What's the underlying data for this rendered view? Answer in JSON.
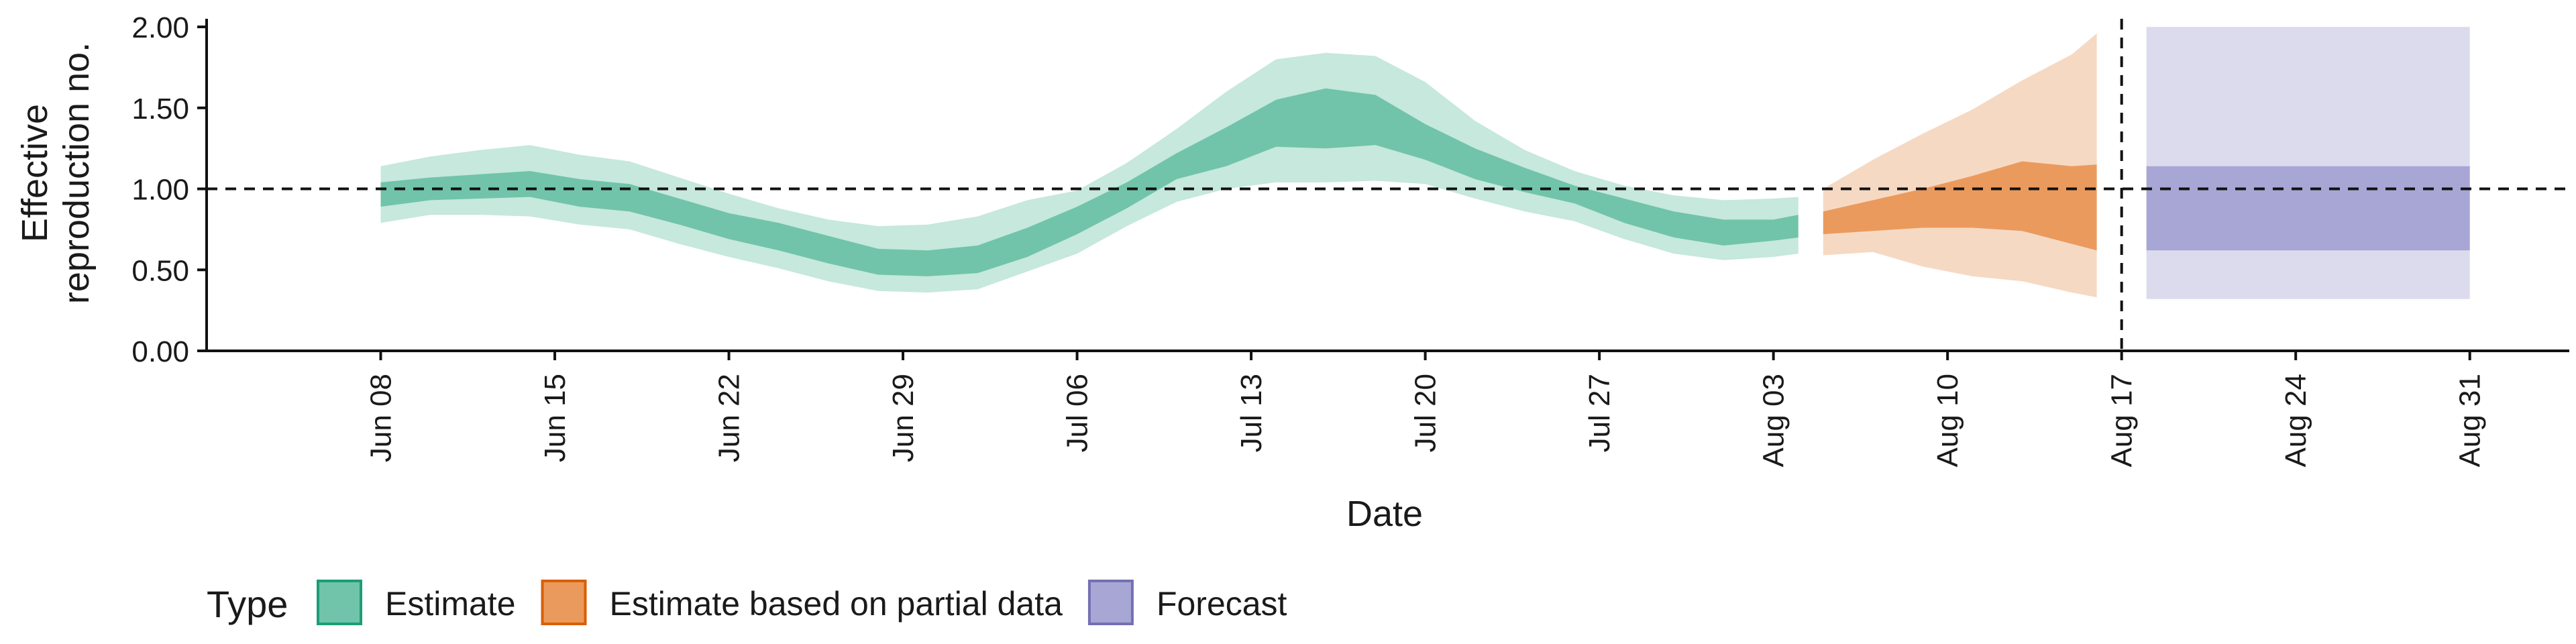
{
  "chart_data": {
    "type": "area",
    "ylabel_lines": [
      "Effective",
      "reproduction no."
    ],
    "xlabel": "Date",
    "ylim": [
      0,
      2.05
    ],
    "xlim": [
      "2020-06-01",
      "2020-09-04"
    ],
    "y_ticks": [
      "0.00",
      "0.50",
      "1.00",
      "1.50",
      "2.00"
    ],
    "x_ticks": [
      {
        "date": "2020-06-08",
        "label": "Jun 08"
      },
      {
        "date": "2020-06-15",
        "label": "Jun 15"
      },
      {
        "date": "2020-06-22",
        "label": "Jun 22"
      },
      {
        "date": "2020-06-29",
        "label": "Jun 29"
      },
      {
        "date": "2020-07-06",
        "label": "Jul 06"
      },
      {
        "date": "2020-07-13",
        "label": "Jul 13"
      },
      {
        "date": "2020-07-20",
        "label": "Jul 20"
      },
      {
        "date": "2020-07-27",
        "label": "Jul 27"
      },
      {
        "date": "2020-08-03",
        "label": "Aug 03"
      },
      {
        "date": "2020-08-10",
        "label": "Aug 10"
      },
      {
        "date": "2020-08-17",
        "label": "Aug 17"
      },
      {
        "date": "2020-08-24",
        "label": "Aug 24"
      },
      {
        "date": "2020-08-31",
        "label": "Aug 31"
      }
    ],
    "reference_hline": 1.0,
    "reference_vline": "2020-08-17",
    "grid": false,
    "legend": {
      "title": "Type",
      "position": "bottom-left",
      "entries": [
        {
          "name": "Estimate",
          "fill": "#71c4a9",
          "stroke": "#1b9e77"
        },
        {
          "name": "Estimate based on partial data",
          "fill": "#eb9a5d",
          "stroke": "#d95f02"
        },
        {
          "name": "Forecast",
          "fill": "#a8a6d4",
          "stroke": "#7570b3"
        }
      ]
    },
    "series": [
      {
        "name": "Estimate",
        "outer_fill": "#c6e8dd",
        "inner_fill": "#71c4a9",
        "points": [
          {
            "x": "2020-06-08",
            "lo90": 0.79,
            "lo50": 0.89,
            "hi50": 1.04,
            "hi90": 1.14
          },
          {
            "x": "2020-06-10",
            "lo90": 0.84,
            "lo50": 0.93,
            "hi50": 1.07,
            "hi90": 1.2
          },
          {
            "x": "2020-06-12",
            "lo90": 0.84,
            "lo50": 0.94,
            "hi50": 1.09,
            "hi90": 1.24
          },
          {
            "x": "2020-06-14",
            "lo90": 0.83,
            "lo50": 0.95,
            "hi50": 1.11,
            "hi90": 1.27
          },
          {
            "x": "2020-06-16",
            "lo90": 0.78,
            "lo50": 0.89,
            "hi50": 1.06,
            "hi90": 1.21
          },
          {
            "x": "2020-06-18",
            "lo90": 0.75,
            "lo50": 0.86,
            "hi50": 1.03,
            "hi90": 1.17
          },
          {
            "x": "2020-06-20",
            "lo90": 0.66,
            "lo50": 0.78,
            "hi50": 0.94,
            "hi90": 1.07
          },
          {
            "x": "2020-06-22",
            "lo90": 0.58,
            "lo50": 0.69,
            "hi50": 0.85,
            "hi90": 0.97
          },
          {
            "x": "2020-06-24",
            "lo90": 0.51,
            "lo50": 0.62,
            "hi50": 0.79,
            "hi90": 0.88
          },
          {
            "x": "2020-06-26",
            "lo90": 0.43,
            "lo50": 0.54,
            "hi50": 0.71,
            "hi90": 0.81
          },
          {
            "x": "2020-06-28",
            "lo90": 0.37,
            "lo50": 0.47,
            "hi50": 0.63,
            "hi90": 0.77
          },
          {
            "x": "2020-06-30",
            "lo90": 0.36,
            "lo50": 0.46,
            "hi50": 0.62,
            "hi90": 0.78
          },
          {
            "x": "2020-07-02",
            "lo90": 0.38,
            "lo50": 0.48,
            "hi50": 0.65,
            "hi90": 0.83
          },
          {
            "x": "2020-07-04",
            "lo90": 0.49,
            "lo50": 0.58,
            "hi50": 0.76,
            "hi90": 0.93
          },
          {
            "x": "2020-07-06",
            "lo90": 0.6,
            "lo50": 0.72,
            "hi50": 0.89,
            "hi90": 0.99
          },
          {
            "x": "2020-07-08",
            "lo90": 0.77,
            "lo50": 0.88,
            "hi50": 1.04,
            "hi90": 1.16
          },
          {
            "x": "2020-07-10",
            "lo90": 0.92,
            "lo50": 1.06,
            "hi50": 1.22,
            "hi90": 1.37
          },
          {
            "x": "2020-07-12",
            "lo90": 1.0,
            "lo50": 1.14,
            "hi50": 1.38,
            "hi90": 1.6
          },
          {
            "x": "2020-07-14",
            "lo90": 1.04,
            "lo50": 1.26,
            "hi50": 1.55,
            "hi90": 1.8
          },
          {
            "x": "2020-07-16",
            "lo90": 1.04,
            "lo50": 1.25,
            "hi50": 1.62,
            "hi90": 1.84
          },
          {
            "x": "2020-07-18",
            "lo90": 1.05,
            "lo50": 1.27,
            "hi50": 1.58,
            "hi90": 1.82
          },
          {
            "x": "2020-07-20",
            "lo90": 1.03,
            "lo50": 1.18,
            "hi50": 1.4,
            "hi90": 1.66
          },
          {
            "x": "2020-07-22",
            "lo90": 0.94,
            "lo50": 1.06,
            "hi50": 1.25,
            "hi90": 1.42
          },
          {
            "x": "2020-07-24",
            "lo90": 0.86,
            "lo50": 0.98,
            "hi50": 1.13,
            "hi90": 1.24
          },
          {
            "x": "2020-07-26",
            "lo90": 0.8,
            "lo50": 0.91,
            "hi50": 1.02,
            "hi90": 1.11
          },
          {
            "x": "2020-07-28",
            "lo90": 0.69,
            "lo50": 0.79,
            "hi50": 0.94,
            "hi90": 1.02
          },
          {
            "x": "2020-07-30",
            "lo90": 0.6,
            "lo50": 0.7,
            "hi50": 0.86,
            "hi90": 0.96
          },
          {
            "x": "2020-08-01",
            "lo90": 0.56,
            "lo50": 0.65,
            "hi50": 0.81,
            "hi90": 0.93
          },
          {
            "x": "2020-08-03",
            "lo90": 0.58,
            "lo50": 0.68,
            "hi50": 0.81,
            "hi90": 0.94
          },
          {
            "x": "2020-08-04",
            "lo90": 0.6,
            "lo50": 0.7,
            "hi50": 0.84,
            "hi90": 0.95
          }
        ]
      },
      {
        "name": "Estimate based on partial data",
        "outer_fill": "#f6d9c3",
        "inner_fill": "#eb9a5d",
        "points": [
          {
            "x": "2020-08-05",
            "lo90": 0.59,
            "lo50": 0.72,
            "hi50": 0.86,
            "hi90": 1.0
          },
          {
            "x": "2020-08-07",
            "lo90": 0.61,
            "lo50": 0.74,
            "hi50": 0.93,
            "hi90": 1.18
          },
          {
            "x": "2020-08-09",
            "lo90": 0.52,
            "lo50": 0.76,
            "hi50": 1.0,
            "hi90": 1.34
          },
          {
            "x": "2020-08-11",
            "lo90": 0.46,
            "lo50": 0.76,
            "hi50": 1.08,
            "hi90": 1.49
          },
          {
            "x": "2020-08-13",
            "lo90": 0.43,
            "lo50": 0.74,
            "hi50": 1.17,
            "hi90": 1.67
          },
          {
            "x": "2020-08-15",
            "lo90": 0.36,
            "lo50": 0.66,
            "hi50": 1.14,
            "hi90": 1.83
          },
          {
            "x": "2020-08-16",
            "lo90": 0.33,
            "lo50": 0.62,
            "hi50": 1.15,
            "hi90": 1.96
          }
        ]
      },
      {
        "name": "Forecast",
        "outer_fill": "#dcdbee",
        "inner_fill": "#a8a6d4",
        "points": [
          {
            "x": "2020-08-18",
            "lo90": 0.32,
            "lo50": 0.62,
            "hi50": 1.14,
            "hi90": 2.0
          },
          {
            "x": "2020-08-31",
            "lo90": 0.32,
            "lo50": 0.62,
            "hi50": 1.14,
            "hi90": 2.0
          }
        ]
      }
    ]
  }
}
